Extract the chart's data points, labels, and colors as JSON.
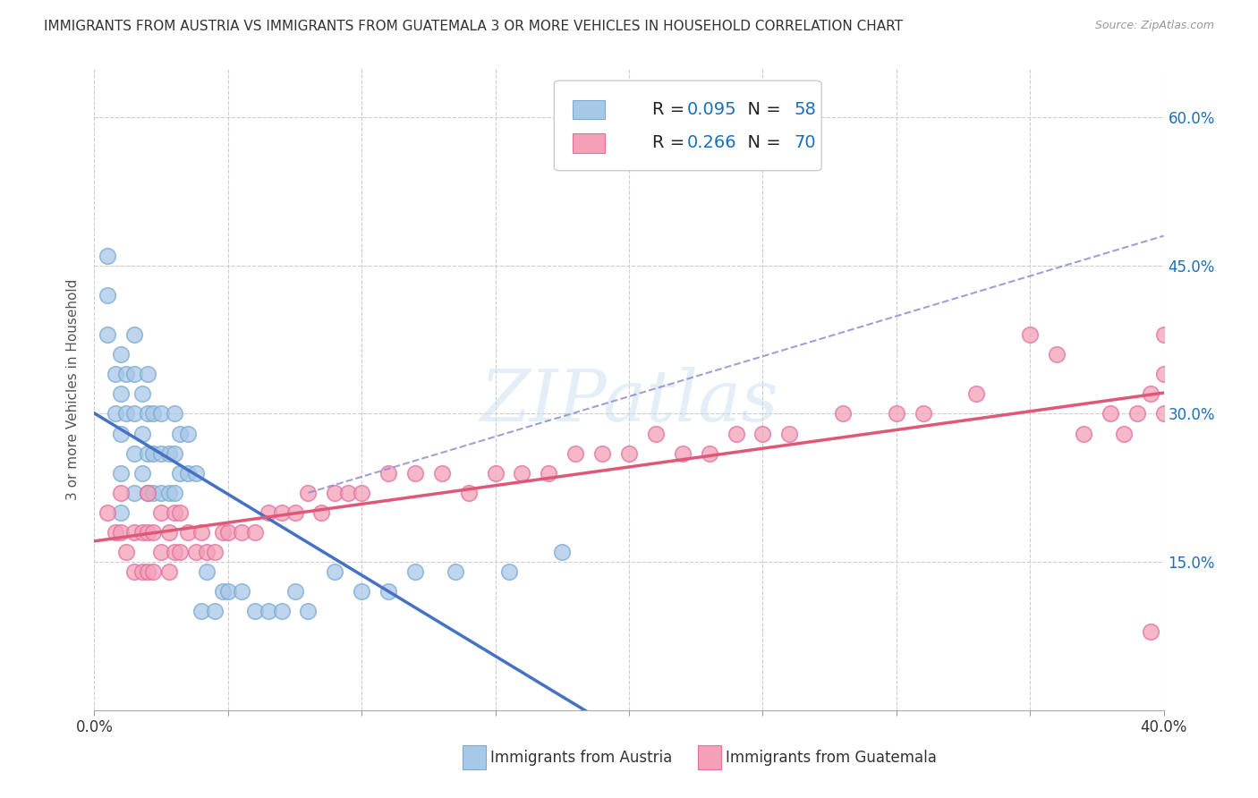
{
  "title": "IMMIGRANTS FROM AUSTRIA VS IMMIGRANTS FROM GUATEMALA 3 OR MORE VEHICLES IN HOUSEHOLD CORRELATION CHART",
  "source": "Source: ZipAtlas.com",
  "ylabel": "3 or more Vehicles in Household",
  "xlim": [
    0.0,
    0.4
  ],
  "ylim": [
    0.0,
    0.65
  ],
  "xtick_vals": [
    0.0,
    0.05,
    0.1,
    0.15,
    0.2,
    0.25,
    0.3,
    0.35,
    0.4
  ],
  "xtick_label_show": {
    "0.0": "0.0%",
    "0.40": "40.0%"
  },
  "ytick_vals_right": [
    0.15,
    0.3,
    0.45,
    0.6
  ],
  "ytick_labels_right": [
    "15.0%",
    "30.0%",
    "45.0%",
    "60.0%"
  ],
  "austria_R": 0.095,
  "austria_N": 58,
  "guatemala_R": 0.266,
  "guatemala_N": 70,
  "austria_color": "#a8c8e8",
  "guatemala_color": "#f4a0b8",
  "austria_line_color": "#4472c4",
  "guatemala_line_color": "#e05878",
  "dashed_line_color": "#8888cc",
  "legend_R_color": "#1a6fbd",
  "legend_N_color": "#1a6fbd",
  "watermark": "ZIPatlas",
  "austria_x": [
    0.005,
    0.005,
    0.005,
    0.008,
    0.008,
    0.01,
    0.01,
    0.01,
    0.01,
    0.01,
    0.012,
    0.012,
    0.015,
    0.015,
    0.015,
    0.015,
    0.015,
    0.018,
    0.018,
    0.018,
    0.02,
    0.02,
    0.02,
    0.02,
    0.022,
    0.022,
    0.022,
    0.025,
    0.025,
    0.025,
    0.028,
    0.028,
    0.03,
    0.03,
    0.03,
    0.032,
    0.032,
    0.035,
    0.035,
    0.038,
    0.04,
    0.042,
    0.045,
    0.048,
    0.05,
    0.055,
    0.06,
    0.065,
    0.07,
    0.075,
    0.08,
    0.09,
    0.1,
    0.11,
    0.12,
    0.135,
    0.155,
    0.175
  ],
  "austria_y": [
    0.38,
    0.42,
    0.46,
    0.3,
    0.34,
    0.2,
    0.24,
    0.28,
    0.32,
    0.36,
    0.3,
    0.34,
    0.22,
    0.26,
    0.3,
    0.34,
    0.38,
    0.24,
    0.28,
    0.32,
    0.22,
    0.26,
    0.3,
    0.34,
    0.22,
    0.26,
    0.3,
    0.22,
    0.26,
    0.3,
    0.22,
    0.26,
    0.22,
    0.26,
    0.3,
    0.24,
    0.28,
    0.24,
    0.28,
    0.24,
    0.1,
    0.14,
    0.1,
    0.12,
    0.12,
    0.12,
    0.1,
    0.1,
    0.1,
    0.12,
    0.1,
    0.14,
    0.12,
    0.12,
    0.14,
    0.14,
    0.14,
    0.16
  ],
  "guatemala_x": [
    0.005,
    0.008,
    0.01,
    0.01,
    0.012,
    0.015,
    0.015,
    0.018,
    0.018,
    0.02,
    0.02,
    0.02,
    0.022,
    0.022,
    0.025,
    0.025,
    0.028,
    0.028,
    0.03,
    0.03,
    0.032,
    0.032,
    0.035,
    0.038,
    0.04,
    0.042,
    0.045,
    0.048,
    0.05,
    0.055,
    0.06,
    0.065,
    0.07,
    0.075,
    0.08,
    0.085,
    0.09,
    0.095,
    0.1,
    0.11,
    0.12,
    0.13,
    0.14,
    0.15,
    0.16,
    0.17,
    0.18,
    0.19,
    0.2,
    0.21,
    0.22,
    0.23,
    0.24,
    0.25,
    0.26,
    0.28,
    0.3,
    0.31,
    0.33,
    0.35,
    0.36,
    0.37,
    0.38,
    0.385,
    0.39,
    0.395,
    0.395,
    0.4,
    0.4,
    0.4
  ],
  "guatemala_y": [
    0.2,
    0.18,
    0.18,
    0.22,
    0.16,
    0.14,
    0.18,
    0.14,
    0.18,
    0.14,
    0.18,
    0.22,
    0.14,
    0.18,
    0.16,
    0.2,
    0.14,
    0.18,
    0.16,
    0.2,
    0.16,
    0.2,
    0.18,
    0.16,
    0.18,
    0.16,
    0.16,
    0.18,
    0.18,
    0.18,
    0.18,
    0.2,
    0.2,
    0.2,
    0.22,
    0.2,
    0.22,
    0.22,
    0.22,
    0.24,
    0.24,
    0.24,
    0.22,
    0.24,
    0.24,
    0.24,
    0.26,
    0.26,
    0.26,
    0.28,
    0.26,
    0.26,
    0.28,
    0.28,
    0.28,
    0.3,
    0.3,
    0.3,
    0.32,
    0.38,
    0.36,
    0.28,
    0.3,
    0.28,
    0.3,
    0.32,
    0.08,
    0.3,
    0.34,
    0.38
  ]
}
